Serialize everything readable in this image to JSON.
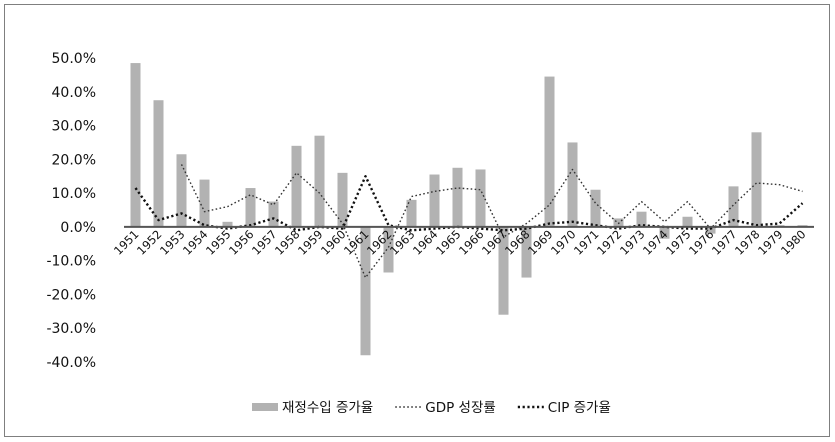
{
  "chart_data": {
    "type": "bar",
    "categories": [
      "1951",
      "1952",
      "1953",
      "1954",
      "1955",
      "1956",
      "1957",
      "1958",
      "1959",
      "1960",
      "1961",
      "1962",
      "1963",
      "1964",
      "1965",
      "1966",
      "1967",
      "1968",
      "1969",
      "1970",
      "1971",
      "1972",
      "1973",
      "1974",
      "1975",
      "1976",
      "1977",
      "1978",
      "1979",
      "1980"
    ],
    "ylim": [
      -40,
      50
    ],
    "yticks": [
      "50.0%",
      "40.0%",
      "30.0%",
      "20.0%",
      "10.0%",
      "0.0%",
      "-10.0%",
      "-20.0%",
      "-30.0%",
      "-40.0%"
    ],
    "ytick_values": [
      50,
      40,
      30,
      20,
      10,
      0,
      -10,
      -20,
      -30,
      -40
    ],
    "series": [
      {
        "name": "재정수입 증가율",
        "render": "bar",
        "color": "#b2b2b2",
        "values": [
          48.5,
          37.5,
          21.5,
          14.0,
          1.5,
          11.5,
          7.5,
          24.0,
          27.0,
          16.0,
          -38.0,
          -13.5,
          8.0,
          15.5,
          17.5,
          17.0,
          -26.0,
          -15.0,
          44.5,
          25.0,
          11.0,
          2.5,
          4.5,
          -3.5,
          3.0,
          -2.0,
          12.0,
          28.0,
          0.5,
          0.5
        ]
      },
      {
        "name": "GDP 성장률",
        "render": "dotted-line",
        "color": "#333333",
        "values": [
          null,
          null,
          18.5,
          4.5,
          6.0,
          9.5,
          6.5,
          16.0,
          10.0,
          1.0,
          -15.0,
          -6.0,
          9.0,
          10.5,
          11.5,
          11.0,
          -3.0,
          1.0,
          6.5,
          17.0,
          7.0,
          1.0,
          7.5,
          1.5,
          7.5,
          -0.5,
          6.5,
          13.0,
          12.5,
          10.5
        ]
      },
      {
        "name": "CIP 증가율",
        "render": "dotted-line-bold",
        "color": "#111111",
        "values": [
          11.5,
          2.0,
          4.0,
          0.5,
          -0.5,
          0.5,
          2.5,
          -1.0,
          0.0,
          -0.5,
          15.0,
          0.5,
          -1.0,
          -0.5,
          0.0,
          -0.5,
          -1.0,
          -0.5,
          1.0,
          1.5,
          0.5,
          -0.5,
          0.5,
          0.0,
          -0.5,
          -0.5,
          2.0,
          0.5,
          1.0,
          7.0
        ]
      }
    ],
    "legend_position": "bottom"
  }
}
